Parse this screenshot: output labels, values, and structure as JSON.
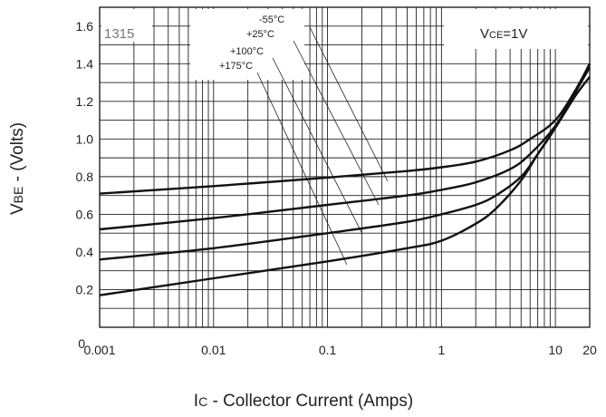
{
  "chart_data": {
    "type": "line",
    "title": "",
    "part_number": "1315",
    "condition_label": "VCE=1V",
    "xlabel": "IC - Collector Current (Amps)",
    "ylabel": "VBE - (Volts)",
    "xscale": "log",
    "xlim": [
      0.001,
      20
    ],
    "ylim": [
      0,
      1.7
    ],
    "x_ticks": [
      {
        "value": 0.001,
        "label": "0.001"
      },
      {
        "value": 0.01,
        "label": "0.01"
      },
      {
        "value": 0.1,
        "label": "0.1"
      },
      {
        "value": 1,
        "label": "1"
      },
      {
        "value": 10,
        "label": "10"
      },
      {
        "value": 20,
        "label": "20"
      }
    ],
    "y_ticks": [
      {
        "value": 0,
        "label": "0"
      },
      {
        "value": 0.2,
        "label": "0.2"
      },
      {
        "value": 0.4,
        "label": "0.4"
      },
      {
        "value": 0.6,
        "label": "0.6"
      },
      {
        "value": 0.8,
        "label": "0.8"
      },
      {
        "value": 1.0,
        "label": "1.0"
      },
      {
        "value": 1.2,
        "label": "1.2"
      },
      {
        "value": 1.4,
        "label": "1.4"
      },
      {
        "value": 1.6,
        "label": "1.6"
      }
    ],
    "grid": true,
    "series": [
      {
        "name": "-55°C",
        "x": [
          0.001,
          0.01,
          0.1,
          0.5,
          1,
          2,
          4,
          6,
          10,
          15,
          20
        ],
        "y": [
          0.71,
          0.75,
          0.795,
          0.83,
          0.85,
          0.88,
          0.94,
          1.0,
          1.1,
          1.26,
          1.4
        ]
      },
      {
        "name": "+25°C",
        "x": [
          0.001,
          0.01,
          0.1,
          0.5,
          1,
          2,
          4,
          6,
          10,
          15,
          20
        ],
        "y": [
          0.52,
          0.58,
          0.65,
          0.7,
          0.73,
          0.77,
          0.84,
          0.92,
          1.07,
          1.25,
          1.4
        ]
      },
      {
        "name": "+100°C",
        "x": [
          0.001,
          0.01,
          0.1,
          0.5,
          1,
          2,
          3,
          5,
          7,
          10,
          15,
          20
        ],
        "y": [
          0.36,
          0.42,
          0.5,
          0.56,
          0.6,
          0.65,
          0.7,
          0.8,
          0.92,
          1.06,
          1.25,
          1.38
        ]
      },
      {
        "name": "+175°C",
        "x": [
          0.001,
          0.01,
          0.1,
          0.5,
          1,
          2,
          3,
          5,
          7,
          10,
          15,
          20
        ],
        "y": [
          0.17,
          0.26,
          0.35,
          0.42,
          0.46,
          0.55,
          0.63,
          0.78,
          0.92,
          1.06,
          1.23,
          1.33
        ]
      }
    ],
    "temperature_labels": [
      "-55°C",
      "+25°C",
      "+100°C",
      "+175°C"
    ]
  }
}
